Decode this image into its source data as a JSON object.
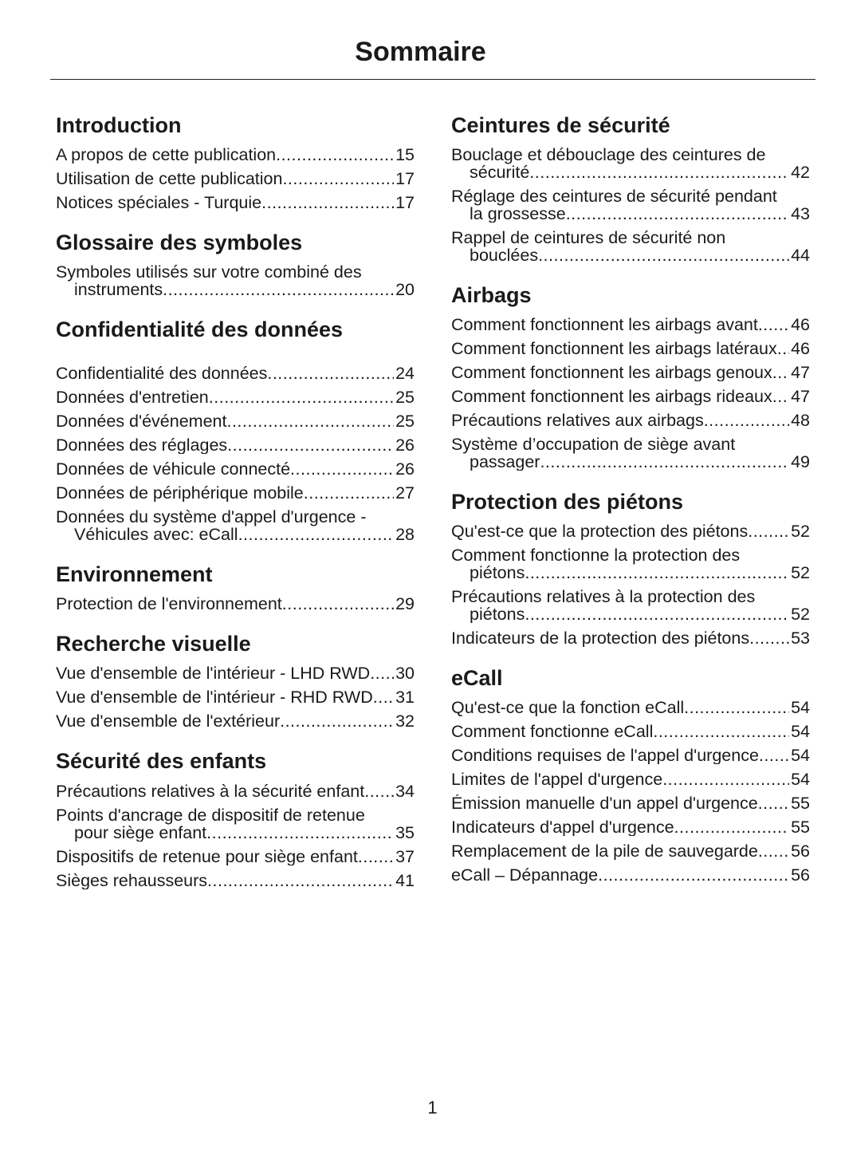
{
  "title": "Sommaire",
  "columns": [
    {
      "sections": [
        {
          "heading": "Introduction",
          "entries": [
            {
              "text": "A propos de cette publication",
              "page": 15
            },
            {
              "text": "Utilisation de cette publication",
              "page": 17
            },
            {
              "text": "Notices spéciales - Turquie",
              "page": 17
            }
          ]
        },
        {
          "heading": "Glossaire des symboles",
          "entries": [
            {
              "text": "Symboles utilisés sur votre combiné des instruments",
              "page": 20
            }
          ]
        },
        {
          "heading": "Confidentialité des données",
          "entries": [
            {
              "text": "Confidentialité des données",
              "page": 24
            },
            {
              "text": "Données d'entretien",
              "page": 25
            },
            {
              "text": "Données d'événement",
              "page": 25
            },
            {
              "text": "Données des réglages",
              "page": 26
            },
            {
              "text": "Données de véhicule connecté",
              "page": 26
            },
            {
              "text": "Données de périphérique mobile",
              "page": 27
            },
            {
              "text": "Données du système d'appel d'urgence - Véhicules avec: eCall",
              "page": 28
            }
          ]
        },
        {
          "heading": "Environnement",
          "entries": [
            {
              "text": "Protection de l'environnement",
              "page": 29
            }
          ]
        },
        {
          "heading": "Recherche visuelle",
          "entries": [
            {
              "text": "Vue d'ensemble de l'intérieur - LHD RWD",
              "page": 30
            },
            {
              "text": "Vue d'ensemble de l'intérieur - RHD RWD",
              "page": 31
            },
            {
              "text": "Vue d'ensemble de l'extérieur",
              "page": 32
            }
          ]
        },
        {
          "heading": "Sécurité des enfants",
          "entries": [
            {
              "text": "Précautions relatives à la sécurité enfant",
              "page": 34
            },
            {
              "text": "Points d'ancrage de dispositif de retenue pour siège enfant",
              "page": 35
            },
            {
              "text": "Dispositifs de retenue pour siège enfant",
              "page": 37
            },
            {
              "text": "Sièges rehausseurs",
              "page": 41
            }
          ]
        }
      ]
    },
    {
      "sections": [
        {
          "heading": "Ceintures de sécurité",
          "entries": [
            {
              "text": "Bouclage et débouclage des ceintures de sécurité",
              "page": 42
            },
            {
              "text": "Réglage des ceintures de sécurité pendant la grossesse",
              "page": 43
            },
            {
              "text": "Rappel de ceintures de sécurité non bouclées",
              "page": 44
            }
          ]
        },
        {
          "heading": "Airbags",
          "entries": [
            {
              "text": "Comment fonctionnent les airbags avant",
              "page": 46
            },
            {
              "text": "Comment fonctionnent les airbags latéraux",
              "page": 46
            },
            {
              "text": "Comment fonctionnent les airbags genoux",
              "page": 47
            },
            {
              "text": "Comment fonctionnent les airbags rideaux",
              "page": 47
            },
            {
              "text": "Précautions relatives aux airbags",
              "page": 48
            },
            {
              "text": "Système d’occupation de siège avant passager",
              "page": 49
            }
          ]
        },
        {
          "heading": "Protection des piétons",
          "entries": [
            {
              "text": "Qu'est-ce que la protection des piétons",
              "page": 52
            },
            {
              "text": "Comment fonctionne la protection des piétons",
              "page": 52
            },
            {
              "text": "Précautions relatives à la protection des piétons",
              "page": 52
            },
            {
              "text": "Indicateurs de la protection des piétons",
              "page": 53
            }
          ]
        },
        {
          "heading": "eCall",
          "entries": [
            {
              "text": "Qu'est-ce que la fonction eCall",
              "page": 54
            },
            {
              "text": "Comment fonctionne eCall",
              "page": 54
            },
            {
              "text": "Conditions requises de l'appel d'urgence",
              "page": 54
            },
            {
              "text": "Limites de l'appel d'urgence",
              "page": 54
            },
            {
              "text": "Émission manuelle d'un appel d'urgence",
              "page": 55
            },
            {
              "text": "Indicateurs d'appel d'urgence",
              "page": 55
            },
            {
              "text": "Remplacement de la pile de sauvegarde",
              "page": 56
            },
            {
              "text": "eCall – Dépannage",
              "page": 56
            }
          ]
        }
      ]
    }
  ],
  "page_number": 1
}
